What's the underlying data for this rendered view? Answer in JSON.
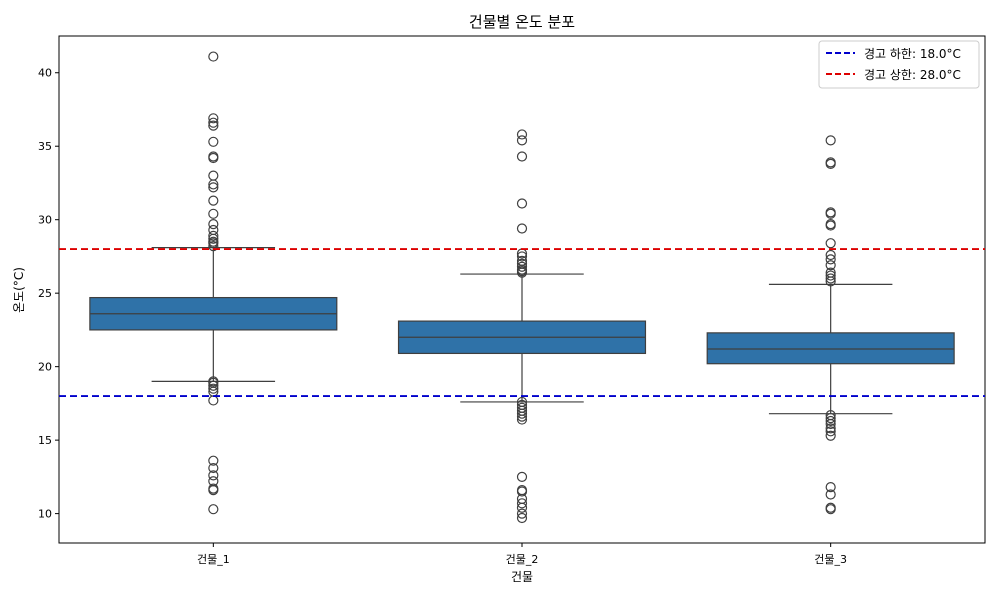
{
  "chart_data": {
    "type": "box",
    "title": "건물별 온도 분포",
    "xlabel": "건물",
    "ylabel": "온도(°C)",
    "ylim": [
      8.0,
      42.5
    ],
    "yticks": [
      10,
      15,
      20,
      25,
      30,
      35,
      40
    ],
    "categories": [
      "건물_1",
      "건물_2",
      "건물_3"
    ],
    "box_color": "#2f72a8",
    "line_color": "#3f3f3f",
    "boxes": [
      {
        "category": "건물_1",
        "whisker_low": 19.0,
        "q1": 22.5,
        "median": 23.6,
        "q3": 24.7,
        "whisker_high": 28.1,
        "outliers": [
          41.1,
          36.9,
          36.6,
          36.4,
          35.3,
          34.3,
          34.2,
          33.0,
          32.4,
          32.2,
          31.3,
          30.4,
          29.7,
          29.3,
          28.9,
          28.7,
          28.5,
          28.4,
          28.2,
          19.0,
          18.9,
          18.7,
          18.5,
          18.3,
          17.7,
          13.6,
          13.1,
          12.6,
          12.2,
          11.7,
          11.6,
          10.3
        ]
      },
      {
        "category": "건물_2",
        "whisker_low": 17.6,
        "q1": 20.9,
        "median": 22.0,
        "q3": 23.1,
        "whisker_high": 26.3,
        "outliers": [
          35.8,
          35.4,
          34.3,
          31.1,
          29.4,
          27.7,
          27.5,
          27.2,
          27.0,
          26.8,
          26.6,
          26.5,
          26.4,
          17.6,
          17.4,
          17.2,
          17.0,
          16.8,
          16.6,
          16.4,
          12.5,
          11.6,
          11.5,
          11.0,
          10.7,
          10.4,
          10.0,
          9.7
        ]
      },
      {
        "category": "건물_3",
        "whisker_low": 16.8,
        "q1": 20.2,
        "median": 21.2,
        "q3": 22.3,
        "whisker_high": 25.6,
        "outliers": [
          35.4,
          33.9,
          33.8,
          30.5,
          30.4,
          29.7,
          29.6,
          28.4,
          27.6,
          27.3,
          26.9,
          26.4,
          26.2,
          26.0,
          25.8,
          16.7,
          16.5,
          16.3,
          16.1,
          15.8,
          15.6,
          15.3,
          11.8,
          11.3,
          10.4,
          10.3
        ]
      }
    ],
    "reference_lines": [
      {
        "label": "경고 하한: 18.0°C",
        "value": 18.0,
        "color": "#0000cc"
      },
      {
        "label": "경고 상한: 28.0°C",
        "value": 28.0,
        "color": "#dd0000"
      }
    ],
    "legend_position": "top-right",
    "grid": false
  }
}
